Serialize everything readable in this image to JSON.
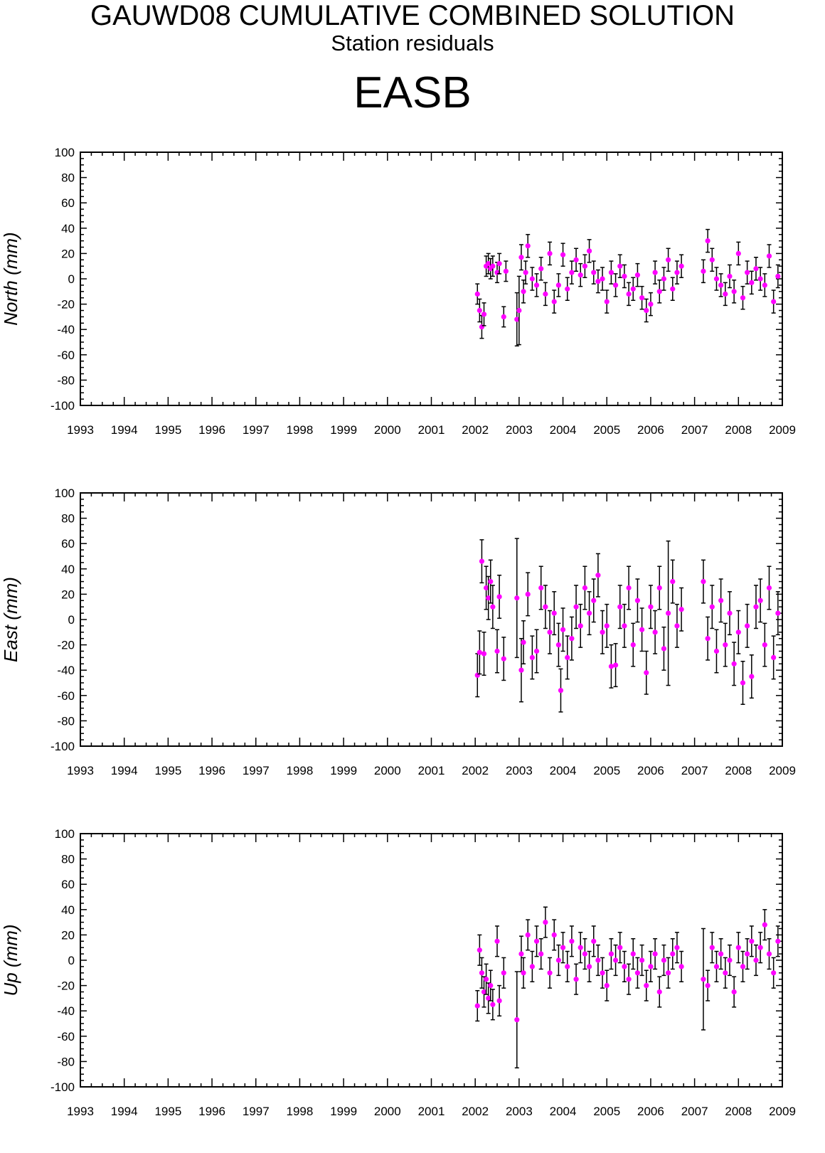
{
  "header": {
    "title": "GAUWD08 CUMULATIVE COMBINED SOLUTION",
    "subtitle": "Station residuals",
    "station": "EASB"
  },
  "colors": {
    "marker": "#ff00ff",
    "errorbar": "#000000",
    "axis": "#000000"
  },
  "chart_data": [
    {
      "type": "scatter",
      "ylabel": "North (mm)",
      "xlim": [
        1993,
        2009
      ],
      "ylim": [
        -100,
        100
      ],
      "x_ticks": [
        "1993",
        "1994",
        "1995",
        "1996",
        "1997",
        "1998",
        "1999",
        "2000",
        "2001",
        "2002",
        "2003",
        "2004",
        "2005",
        "2006",
        "2007",
        "2008",
        "2009"
      ],
      "y_ticks": [
        "-100",
        "-80",
        "-60",
        "-40",
        "-20",
        "0",
        "20",
        "40",
        "60",
        "80",
        "100"
      ],
      "error_bars": true,
      "series": [
        {
          "x": [
            2002.05,
            2002.1,
            2002.15,
            2002.2,
            2002.25,
            2002.3,
            2002.35,
            2002.4,
            2002.5,
            2002.55,
            2002.65,
            2002.7,
            2002.95,
            2003.0,
            2003.05,
            2003.1,
            2003.15,
            2003.2,
            2003.3,
            2003.4,
            2003.5,
            2003.6,
            2003.7,
            2003.8,
            2003.9,
            2004.0,
            2004.1,
            2004.2,
            2004.3,
            2004.4,
            2004.5,
            2004.6,
            2004.7,
            2004.8,
            2004.9,
            2005.0,
            2005.1,
            2005.2,
            2005.3,
            2005.4,
            2005.5,
            2005.6,
            2005.7,
            2005.8,
            2005.9,
            2006.0,
            2006.1,
            2006.2,
            2006.3,
            2006.4,
            2006.5,
            2006.6,
            2006.7,
            2007.2,
            2007.3,
            2007.4,
            2007.5,
            2007.6,
            2007.7,
            2007.8,
            2007.9,
            2008.0,
            2008.1,
            2008.2,
            2008.3,
            2008.4,
            2008.5,
            2008.6,
            2008.7,
            2008.8,
            2008.9
          ],
          "y": [
            -12,
            -25,
            -38,
            -28,
            10,
            12,
            8,
            10,
            5,
            12,
            -30,
            6,
            -32,
            -25,
            17,
            -10,
            5,
            26,
            0,
            -5,
            8,
            -12,
            20,
            -18,
            -5,
            19,
            -8,
            5,
            15,
            3,
            10,
            22,
            5,
            -2,
            0,
            -18,
            5,
            -5,
            10,
            2,
            -12,
            -8,
            3,
            -15,
            -25,
            -20,
            5,
            -10,
            0,
            15,
            -8,
            5,
            10,
            6,
            30,
            15,
            0,
            -5,
            -12,
            2,
            -10,
            20,
            -15,
            5,
            -3,
            8,
            0,
            -5,
            18,
            -18,
            2
          ],
          "err": [
            8,
            9,
            9,
            9,
            8,
            8,
            8,
            8,
            8,
            8,
            8,
            8,
            21,
            27,
            10,
            9,
            9,
            9,
            9,
            9,
            9,
            9,
            9,
            9,
            9,
            9,
            9,
            9,
            9,
            9,
            9,
            9,
            9,
            9,
            9,
            9,
            9,
            9,
            9,
            9,
            9,
            9,
            9,
            9,
            9,
            9,
            9,
            9,
            9,
            9,
            9,
            9,
            9,
            9,
            9,
            9,
            9,
            9,
            9,
            9,
            9,
            9,
            9,
            9,
            9,
            9,
            9,
            9,
            9,
            9,
            9
          ]
        }
      ]
    },
    {
      "type": "scatter",
      "ylabel": "East (mm)",
      "xlim": [
        1993,
        2009
      ],
      "ylim": [
        -100,
        100
      ],
      "x_ticks": [
        "1993",
        "1994",
        "1995",
        "1996",
        "1997",
        "1998",
        "1999",
        "2000",
        "2001",
        "2002",
        "2003",
        "2004",
        "2005",
        "2006",
        "2007",
        "2008",
        "2009"
      ],
      "y_ticks": [
        "-100",
        "-80",
        "-60",
        "-40",
        "-20",
        "0",
        "20",
        "40",
        "60",
        "80",
        "100"
      ],
      "error_bars": true,
      "series": [
        {
          "x": [
            2002.05,
            2002.1,
            2002.15,
            2002.2,
            2002.25,
            2002.3,
            2002.35,
            2002.4,
            2002.5,
            2002.55,
            2002.65,
            2002.95,
            2003.05,
            2003.1,
            2003.2,
            2003.3,
            2003.4,
            2003.5,
            2003.6,
            2003.7,
            2003.8,
            2003.9,
            2003.95,
            2004.0,
            2004.1,
            2004.2,
            2004.3,
            2004.4,
            2004.5,
            2004.6,
            2004.7,
            2004.8,
            2004.9,
            2005.0,
            2005.1,
            2005.2,
            2005.3,
            2005.4,
            2005.5,
            2005.6,
            2005.7,
            2005.8,
            2005.9,
            2006.0,
            2006.1,
            2006.2,
            2006.3,
            2006.4,
            2006.5,
            2006.6,
            2006.7,
            2007.2,
            2007.3,
            2007.4,
            2007.5,
            2007.6,
            2007.7,
            2007.8,
            2007.9,
            2008.0,
            2008.1,
            2008.2,
            2008.3,
            2008.4,
            2008.5,
            2008.6,
            2008.7,
            2008.8,
            2008.9
          ],
          "y": [
            -44,
            -26,
            46,
            -27,
            25,
            17,
            30,
            10,
            -25,
            18,
            -31,
            17,
            -40,
            -18,
            20,
            -30,
            -25,
            25,
            10,
            -10,
            5,
            -20,
            -56,
            -8,
            -30,
            -15,
            10,
            -5,
            25,
            5,
            15,
            35,
            -10,
            -5,
            -37,
            -36,
            10,
            -5,
            25,
            -20,
            15,
            -8,
            -42,
            10,
            -10,
            25,
            -23,
            5,
            30,
            -5,
            8,
            30,
            -15,
            10,
            -25,
            15,
            -20,
            5,
            -35,
            -10,
            -50,
            -5,
            -45,
            10,
            15,
            -20,
            25,
            -30,
            5
          ],
          "err": [
            17,
            17,
            17,
            17,
            17,
            17,
            17,
            17,
            17,
            17,
            17,
            47,
            25,
            17,
            17,
            17,
            17,
            17,
            17,
            17,
            17,
            17,
            17,
            17,
            17,
            17,
            17,
            17,
            17,
            17,
            17,
            17,
            17,
            17,
            17,
            17,
            17,
            17,
            17,
            17,
            17,
            17,
            17,
            17,
            17,
            17,
            17,
            57,
            17,
            17,
            17,
            17,
            17,
            17,
            17,
            17,
            17,
            17,
            17,
            17,
            17,
            17,
            17,
            17,
            17,
            17,
            17,
            17,
            17
          ]
        }
      ]
    },
    {
      "type": "scatter",
      "ylabel": "Up (mm)",
      "xlim": [
        1993,
        2009
      ],
      "ylim": [
        -100,
        100
      ],
      "x_ticks": [
        "1993",
        "1994",
        "1995",
        "1996",
        "1997",
        "1998",
        "1999",
        "2000",
        "2001",
        "2002",
        "2003",
        "2004",
        "2005",
        "2006",
        "2007",
        "2008",
        "2009"
      ],
      "y_ticks": [
        "-100",
        "-80",
        "-60",
        "-40",
        "-20",
        "0",
        "20",
        "40",
        "60",
        "80",
        "100"
      ],
      "error_bars": true,
      "series": [
        {
          "x": [
            2002.05,
            2002.1,
            2002.15,
            2002.2,
            2002.25,
            2002.3,
            2002.35,
            2002.4,
            2002.5,
            2002.55,
            2002.65,
            2002.95,
            2003.05,
            2003.1,
            2003.2,
            2003.3,
            2003.4,
            2003.5,
            2003.6,
            2003.7,
            2003.8,
            2003.9,
            2004.0,
            2004.1,
            2004.2,
            2004.3,
            2004.4,
            2004.5,
            2004.6,
            2004.7,
            2004.8,
            2004.9,
            2005.0,
            2005.1,
            2005.2,
            2005.3,
            2005.4,
            2005.5,
            2005.6,
            2005.7,
            2005.8,
            2005.9,
            2006.0,
            2006.1,
            2006.2,
            2006.3,
            2006.4,
            2006.5,
            2006.6,
            2006.7,
            2007.2,
            2007.3,
            2007.4,
            2007.5,
            2007.6,
            2007.7,
            2007.8,
            2007.9,
            2008.0,
            2008.1,
            2008.2,
            2008.3,
            2008.4,
            2008.5,
            2008.6,
            2008.7,
            2008.8,
            2008.9
          ],
          "y": [
            -36,
            8,
            -10,
            -25,
            -15,
            -30,
            -20,
            -35,
            15,
            -32,
            -10,
            -47,
            5,
            -10,
            20,
            -5,
            15,
            5,
            30,
            -10,
            20,
            0,
            10,
            -5,
            15,
            -15,
            10,
            5,
            -5,
            15,
            0,
            -10,
            -20,
            5,
            0,
            10,
            -5,
            -15,
            5,
            -10,
            0,
            -20,
            -5,
            5,
            -25,
            0,
            -10,
            5,
            10,
            -5,
            -15,
            -20,
            10,
            -5,
            5,
            -10,
            0,
            -25,
            10,
            -5,
            5,
            15,
            0,
            10,
            28,
            5,
            -10,
            15
          ],
          "err": [
            12,
            12,
            12,
            12,
            12,
            12,
            12,
            12,
            12,
            12,
            12,
            38,
            14,
            12,
            12,
            12,
            12,
            12,
            12,
            12,
            12,
            12,
            12,
            12,
            12,
            12,
            12,
            12,
            12,
            12,
            12,
            12,
            12,
            12,
            12,
            12,
            12,
            12,
            12,
            12,
            12,
            12,
            12,
            12,
            12,
            12,
            12,
            12,
            12,
            12,
            40,
            12,
            12,
            12,
            12,
            12,
            12,
            12,
            12,
            12,
            12,
            12,
            12,
            12,
            12,
            12,
            12,
            12
          ]
        }
      ]
    }
  ]
}
